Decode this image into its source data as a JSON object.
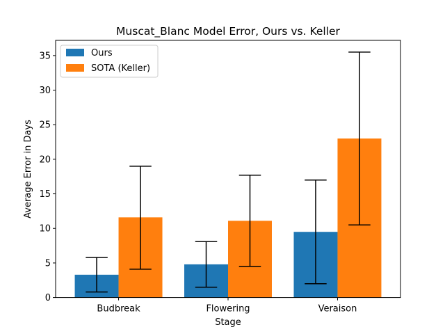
{
  "chart_data": {
    "type": "bar",
    "title": "Muscat_Blanc Model Error, Ours vs. Keller",
    "xlabel": "Stage",
    "ylabel": "Average Error in Days",
    "categories": [
      "Budbreak",
      "Flowering",
      "Veraison"
    ],
    "ylim": [
      0,
      37.2
    ],
    "yticks": [
      0,
      5,
      10,
      15,
      20,
      25,
      30,
      35
    ],
    "ytick_labels": [
      "0",
      "5",
      "10",
      "15",
      "20",
      "25",
      "30",
      "35"
    ],
    "grid": false,
    "legend_position": "top-left",
    "series": [
      {
        "name": "Ours",
        "color": "#1f77b4",
        "values": [
          3.3,
          4.8,
          9.5
        ],
        "error_low": [
          0.8,
          1.5,
          2.0
        ],
        "error_high": [
          5.8,
          8.1,
          17.0
        ]
      },
      {
        "name": "SOTA (Keller)",
        "color": "#ff7f0e",
        "values": [
          11.6,
          11.1,
          23.0
        ],
        "error_low": [
          4.1,
          4.5,
          10.5
        ],
        "error_high": [
          19.0,
          17.7,
          35.5
        ]
      }
    ]
  }
}
